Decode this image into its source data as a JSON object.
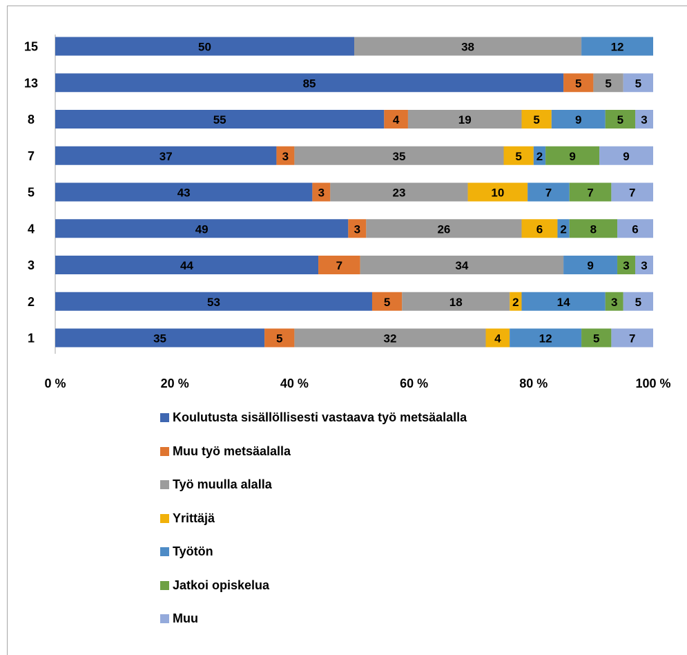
{
  "chart_data": {
    "type": "bar",
    "orientation": "horizontal",
    "stacking": "percent",
    "categories": [
      "15",
      "13",
      "8",
      "7",
      "5",
      "4",
      "3",
      "2",
      "1"
    ],
    "series": [
      {
        "name": "Koulutusta sisällöllisesti vastaava työ metsäalalla",
        "color": "#3f67b1",
        "values": [
          50,
          85,
          55,
          37,
          43,
          49,
          44,
          53,
          35
        ]
      },
      {
        "name": "Muu työ metsäalalla",
        "color": "#df7530",
        "values": [
          0,
          5,
          4,
          3,
          3,
          3,
          7,
          5,
          5
        ]
      },
      {
        "name": "Työ muulla alalla",
        "color": "#9c9c9c",
        "values": [
          38,
          5,
          19,
          35,
          23,
          26,
          34,
          18,
          32
        ]
      },
      {
        "name": "Yrittäjä",
        "color": "#f1b10a",
        "values": [
          0,
          0,
          5,
          5,
          10,
          6,
          0,
          2,
          4
        ]
      },
      {
        "name": "Työtön",
        "color": "#4d8bc6",
        "values": [
          12,
          0,
          9,
          2,
          7,
          2,
          9,
          14,
          12
        ]
      },
      {
        "name": "Jatkoi opiskelua",
        "color": "#6ea144",
        "values": [
          0,
          0,
          5,
          9,
          7,
          8,
          3,
          3,
          5
        ]
      },
      {
        "name": "Muu",
        "color": "#94aadb",
        "values": [
          0,
          5,
          3,
          9,
          7,
          6,
          3,
          5,
          7
        ]
      }
    ],
    "xticks": [
      "0 %",
      "20 %",
      "40 %",
      "60 %",
      "80 %",
      "100 %"
    ],
    "xlim": [
      0,
      100
    ],
    "title": "",
    "xlabel": "",
    "ylabel": "",
    "grid": false,
    "legend_position": "bottom"
  }
}
